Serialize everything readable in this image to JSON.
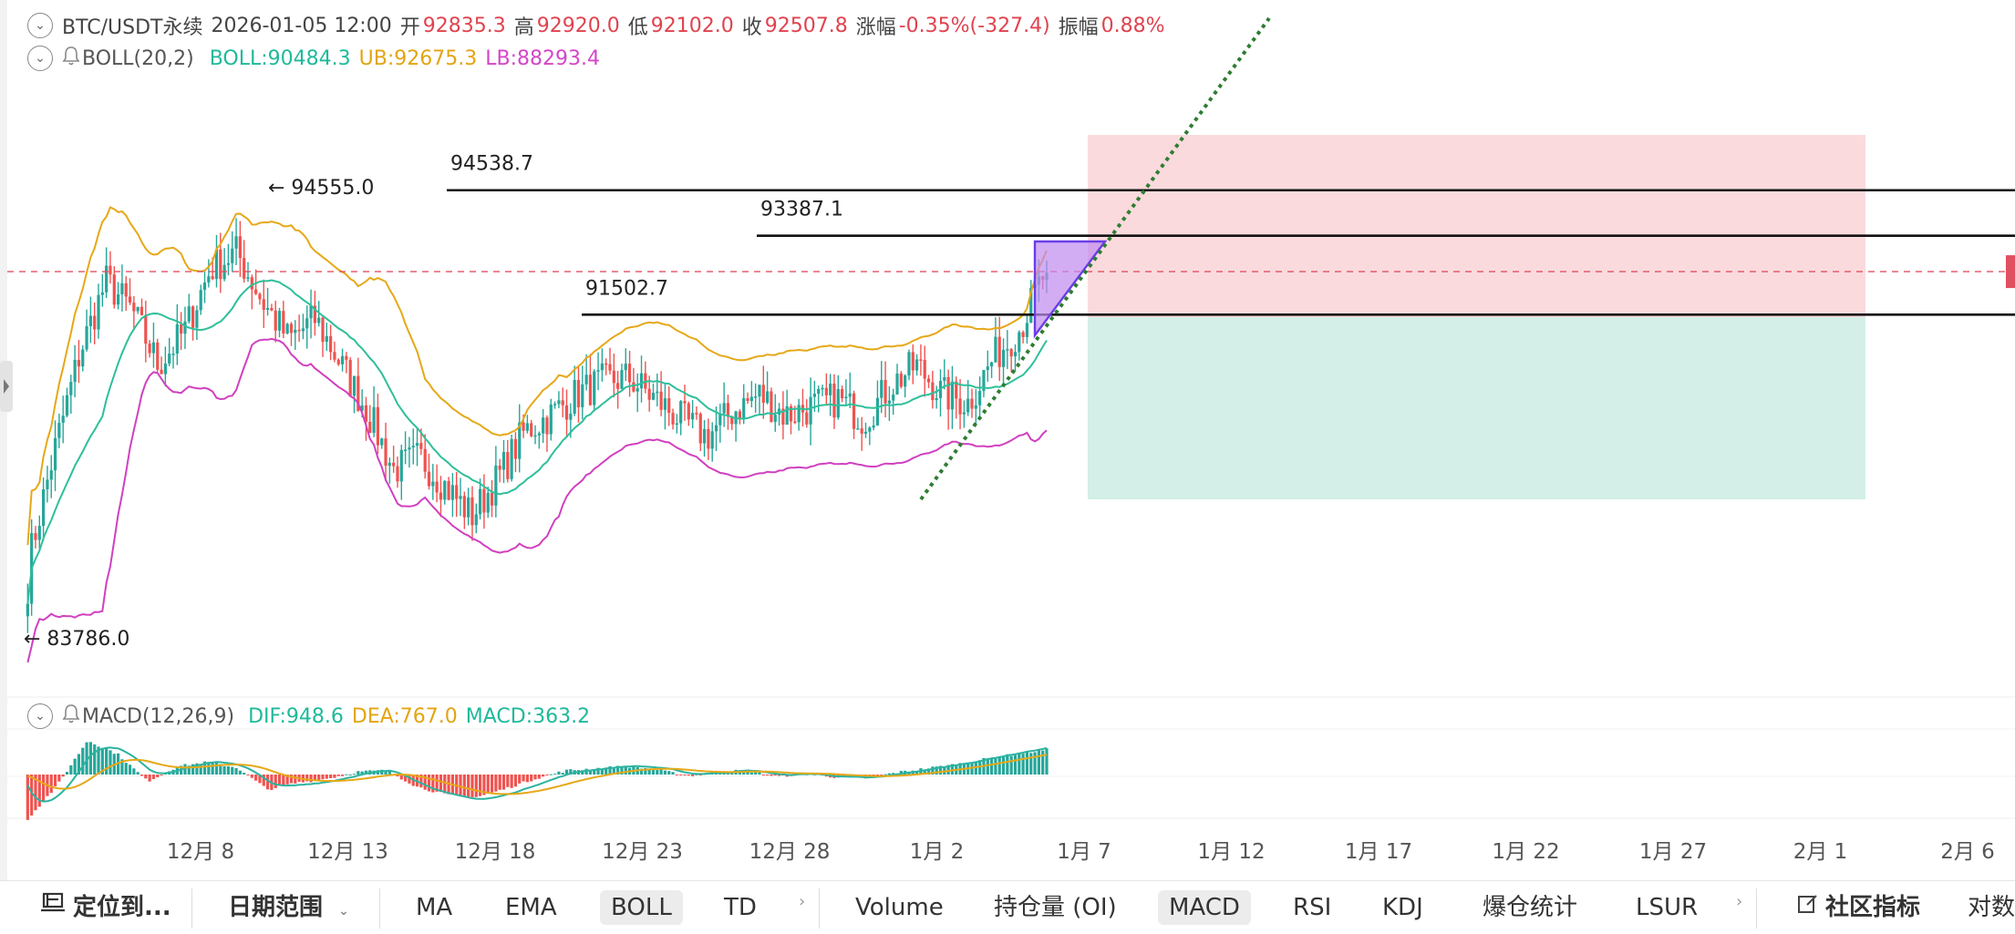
{
  "header": {
    "symbol": "BTC/USDT永续",
    "datetime": "2026-01-05 12:00",
    "open_label": "开",
    "open": "92835.3",
    "high_label": "高",
    "high": "92920.0",
    "low_label": "低",
    "low": "92102.0",
    "close_label": "收",
    "close": "92507.8",
    "change_label": "涨幅",
    "change": "-0.35%(-327.4)",
    "amp_label": "振幅",
    "amp": "0.88%"
  },
  "boll_header": {
    "name": "BOLL(20,2)",
    "boll": "BOLL:90484.3",
    "ub": "UB:92675.3",
    "lb": "LB:88293.4"
  },
  "macd_header": {
    "name": "MACD(12,26,9)",
    "dif": "DIF:948.6",
    "dea": "DEA:767.0",
    "macd": "MACD:363.2"
  },
  "annotations": {
    "high_marker": "← 94555.0",
    "low_marker": "← 83786.0",
    "level1": "94538.7",
    "level2": "93387.1",
    "level3": "91502.7"
  },
  "chart_data": {
    "type": "candlestick",
    "x_ticks": [
      "12月 8",
      "12月 13",
      "12月 18",
      "12月 23",
      "12月 28",
      "1月 2",
      "1月 7",
      "1月 12",
      "1月 17",
      "1月 22",
      "1月 27",
      "2月 1",
      "2月 6"
    ],
    "ylim": [
      82500,
      96500
    ],
    "price_high": 94555.0,
    "price_low": 83786.0,
    "current_price": 92507.8,
    "horizontal_levels": [
      94538.7,
      93387.1,
      91502.7
    ],
    "close_waypoints": [
      85500,
      88200,
      90600,
      92300,
      91600,
      90300,
      91100,
      92600,
      93000,
      91800,
      90900,
      91400,
      90300,
      89200,
      87800,
      88100,
      87400,
      86700,
      87600,
      88700,
      89100,
      89600,
      89900,
      90000,
      89500,
      89000,
      88600,
      89200,
      89600,
      89100,
      89300,
      89500,
      89000,
      89800,
      90300,
      89600,
      89400,
      90500,
      91200,
      92600
    ],
    "macd_waypoints": [
      -650,
      -150,
      500,
      300,
      -100,
      120,
      180,
      100,
      -220,
      -120,
      -60,
      40,
      60,
      -180,
      -300,
      -330,
      -200,
      -50,
      60,
      90,
      120,
      70,
      -20,
      40,
      60,
      -30,
      20,
      -40,
      -50,
      30,
      90,
      150,
      230,
      300,
      363
    ]
  },
  "colors": {
    "up": "#26a69a",
    "down": "#ef5350",
    "boll": "#2ebf9a",
    "ub": "#e6a817",
    "lb": "#d040c0",
    "short_zone": "#fadadd",
    "long_zone": "#d3efe7",
    "triangle": "#c08af0"
  },
  "toolbar": {
    "locate": "定位到...",
    "date_range": "日期范围",
    "ind1": "MA",
    "ind2": "EMA",
    "ind3": "BOLL",
    "ind4": "TD",
    "sub1": "Volume",
    "sub2": "持仓量 (OI)",
    "sub3": "MACD",
    "sub4": "RSI",
    "sub5": "KDJ",
    "sub6": "爆仓统计",
    "sub7": "LSUR",
    "community": "社区指标",
    "log": "对数"
  }
}
